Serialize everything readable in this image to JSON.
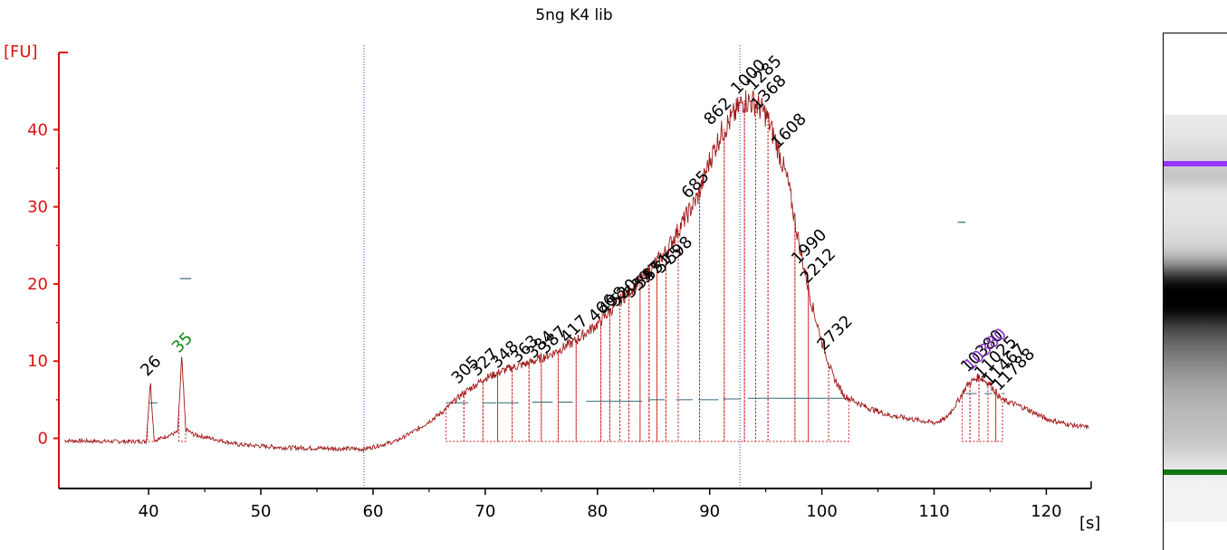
{
  "chart_data": {
    "type": "line",
    "title": "5ng K4 lib",
    "ylabel": "[FU]",
    "xlabel": "[s]",
    "xlim": [
      32,
      124
    ],
    "ylim": [
      -6.5,
      50
    ],
    "x_ticks": [
      40,
      50,
      60,
      70,
      80,
      90,
      100,
      110,
      120
    ],
    "y_ticks": [
      0,
      10,
      20,
      30,
      40
    ],
    "grid": false,
    "trace_color": "#a01818",
    "axis_color": "#dd1111",
    "envelope": [
      [
        32.5,
        -0.3
      ],
      [
        36,
        -0.4
      ],
      [
        39.8,
        -0.4
      ],
      [
        40.15,
        7.5
      ],
      [
        40.5,
        -0.3
      ],
      [
        42.6,
        0.8
      ],
      [
        42.95,
        10.5
      ],
      [
        43.3,
        1.2
      ],
      [
        44,
        0.5
      ],
      [
        48,
        -0.8
      ],
      [
        52,
        -1.2
      ],
      [
        56,
        -1.3
      ],
      [
        59.2,
        -1.4
      ],
      [
        62,
        -0.4
      ],
      [
        64,
        1.2
      ],
      [
        66,
        3.2
      ],
      [
        68,
        5.8
      ],
      [
        70,
        7.8
      ],
      [
        72,
        9.0
      ],
      [
        74,
        9.8
      ],
      [
        76,
        11.0
      ],
      [
        78,
        12.6
      ],
      [
        80,
        14.8
      ],
      [
        82,
        17.8
      ],
      [
        84,
        20.8
      ],
      [
        86,
        24.0
      ],
      [
        88,
        29.0
      ],
      [
        89,
        31.5
      ],
      [
        90,
        36.0
      ],
      [
        91,
        39.5
      ],
      [
        92,
        41.5
      ],
      [
        93,
        43.8
      ],
      [
        94,
        43.5
      ],
      [
        95,
        42.0
      ],
      [
        96,
        38.0
      ],
      [
        97,
        33.0
      ],
      [
        98,
        25.0
      ],
      [
        99,
        18.0
      ],
      [
        100,
        12.5
      ],
      [
        101,
        8.0
      ],
      [
        102,
        5.5
      ],
      [
        104,
        4.0
      ],
      [
        106,
        3.0
      ],
      [
        108,
        2.5
      ],
      [
        110,
        2.0
      ],
      [
        111,
        2.5
      ],
      [
        112,
        4.5
      ],
      [
        113,
        7.0
      ],
      [
        114,
        8.0
      ],
      [
        115,
        7.0
      ],
      [
        116,
        5.0
      ],
      [
        118,
        4.0
      ],
      [
        120,
        2.5
      ],
      [
        122,
        1.8
      ],
      [
        123.8,
        1.4
      ]
    ],
    "peaks": [
      {
        "x": 40.2,
        "y": 7.5,
        "label": "26",
        "color": "#000000"
      },
      {
        "x": 43.0,
        "y": 10.5,
        "label": "35",
        "color": "#118811"
      },
      {
        "x": 67.9,
        "y": 6.5,
        "label": "305",
        "color": "#000000"
      },
      {
        "x": 69.6,
        "y": 7.5,
        "label": "327",
        "color": "#000000"
      },
      {
        "x": 71.4,
        "y": 8.5,
        "label": "348",
        "color": "#000000"
      },
      {
        "x": 73.2,
        "y": 9.2,
        "label": "363",
        "color": "#000000"
      },
      {
        "x": 74.6,
        "y": 9.8,
        "label": "384",
        "color": "#000000"
      },
      {
        "x": 75.7,
        "y": 10.4,
        "label": "387",
        "color": "#000000"
      },
      {
        "x": 77.6,
        "y": 11.8,
        "label": "417",
        "color": "#000000"
      },
      {
        "x": 80.1,
        "y": 14.5,
        "label": "466",
        "color": "#000000"
      },
      {
        "x": 81.0,
        "y": 15.5,
        "label": "498",
        "color": "#000000"
      },
      {
        "x": 82.0,
        "y": 16.5,
        "label": "520",
        "color": "#000000"
      },
      {
        "x": 83.3,
        "y": 17.6,
        "label": "539",
        "color": "#000000"
      },
      {
        "x": 84.2,
        "y": 18.8,
        "label": "547",
        "color": "#000000"
      },
      {
        "x": 85.0,
        "y": 19.8,
        "label": "551",
        "color": "#000000"
      },
      {
        "x": 86.0,
        "y": 20.8,
        "label": "575",
        "color": "#000000"
      },
      {
        "x": 86.9,
        "y": 22.0,
        "label": "598",
        "color": "#000000"
      },
      {
        "x": 88.4,
        "y": 30.5,
        "label": "685",
        "color": "#000000"
      },
      {
        "x": 90.4,
        "y": 40.0,
        "label": "862",
        "color": "#000000"
      },
      {
        "x": 92.8,
        "y": 44.0,
        "label": "1000",
        "color": "#000000"
      },
      {
        "x": 94.2,
        "y": 44.5,
        "label": "1285",
        "color": "#000000"
      },
      {
        "x": 94.6,
        "y": 42.0,
        "label": "1368",
        "color": "#000000"
      },
      {
        "x": 96.4,
        "y": 37.0,
        "label": "1608",
        "color": "#000000"
      },
      {
        "x": 98.2,
        "y": 22.0,
        "label": "1990",
        "color": "#000000"
      },
      {
        "x": 99.0,
        "y": 19.5,
        "label": "2212",
        "color": "#000000"
      },
      {
        "x": 100.5,
        "y": 10.8,
        "label": "2732",
        "color": "#000000"
      },
      {
        "x": 113.3,
        "y": 8.0,
        "label": "10380",
        "color": "#000000"
      },
      {
        "x": 113.6,
        "y": 8.2,
        "label": "10380",
        "color": "#8833cc"
      },
      {
        "x": 114.5,
        "y": 7.2,
        "label": "11025",
        "color": "#000000"
      },
      {
        "x": 115.3,
        "y": 6.2,
        "label": "11467",
        "color": "#000000"
      },
      {
        "x": 116.1,
        "y": 5.6,
        "label": "11788",
        "color": "#000000"
      }
    ],
    "integration_windows": [
      [
        39.9,
        40.6,
        -0.4
      ],
      [
        42.7,
        43.3,
        -0.4
      ],
      [
        66.5,
        68.1,
        -0.4
      ],
      [
        68.1,
        69.8,
        -0.4
      ],
      [
        69.8,
        71.1,
        -0.4
      ],
      [
        71.1,
        72.4,
        -0.4
      ],
      [
        72.4,
        73.9,
        -0.4
      ],
      [
        73.9,
        75.0,
        -0.4
      ],
      [
        75.0,
        76.5,
        -0.4
      ],
      [
        76.5,
        78.1,
        -0.4
      ],
      [
        78.1,
        80.3,
        -0.4
      ],
      [
        80.3,
        81.1,
        -0.4
      ],
      [
        81.1,
        82.0,
        -0.4
      ],
      [
        82.0,
        82.8,
        -0.4
      ],
      [
        82.8,
        83.8,
        -0.4
      ],
      [
        83.8,
        84.6,
        -0.4
      ],
      [
        84.6,
        85.3,
        -0.4
      ],
      [
        85.3,
        86.1,
        -0.4
      ],
      [
        86.1,
        87.2,
        -0.4
      ],
      [
        87.2,
        89.1,
        -0.4
      ],
      [
        89.1,
        91.3,
        -0.4
      ],
      [
        91.3,
        93.1,
        -0.4
      ],
      [
        93.1,
        94.1,
        -0.4
      ],
      [
        94.1,
        95.2,
        -0.4
      ],
      [
        95.2,
        97.6,
        -0.4
      ],
      [
        97.6,
        98.8,
        -0.4
      ],
      [
        98.8,
        100.6,
        -0.4
      ],
      [
        100.6,
        102.4,
        -0.4
      ],
      [
        112.5,
        113.2,
        -0.4
      ],
      [
        113.2,
        114.0,
        -0.4
      ],
      [
        114.0,
        114.8,
        -0.4
      ],
      [
        114.8,
        115.5,
        -0.4
      ],
      [
        115.5,
        116.1,
        -0.4
      ]
    ],
    "baselines": [
      [
        40.0,
        40.8,
        4.6
      ],
      [
        66.5,
        68.5,
        4.6
      ],
      [
        69.8,
        71.0,
        4.6
      ],
      [
        71.1,
        73.0,
        4.6
      ],
      [
        74.2,
        76.0,
        4.7
      ],
      [
        76.5,
        77.8,
        4.7
      ],
      [
        79.0,
        81.0,
        4.8
      ],
      [
        81.0,
        82.8,
        4.8
      ],
      [
        82.8,
        84.0,
        4.8
      ],
      [
        84.5,
        86.0,
        5.0
      ],
      [
        87.0,
        88.5,
        5.0
      ],
      [
        89.0,
        90.8,
        5.0
      ],
      [
        91.2,
        92.8,
        5.1
      ],
      [
        93.4,
        102.3,
        5.2
      ],
      [
        112.8,
        113.8,
        5.8
      ],
      [
        114.5,
        115.2,
        5.8
      ],
      [
        116.0,
        116.3,
        5.8
      ]
    ],
    "marker_dashes": [
      [
        42.8,
        43.8,
        20.7
      ],
      [
        112.1,
        112.8,
        28.0
      ]
    ],
    "vertical_markers": [
      59.2,
      92.7
    ]
  },
  "gel": {
    "upper_marker_color": "#9933ff",
    "lower_marker_color": "#117711"
  }
}
